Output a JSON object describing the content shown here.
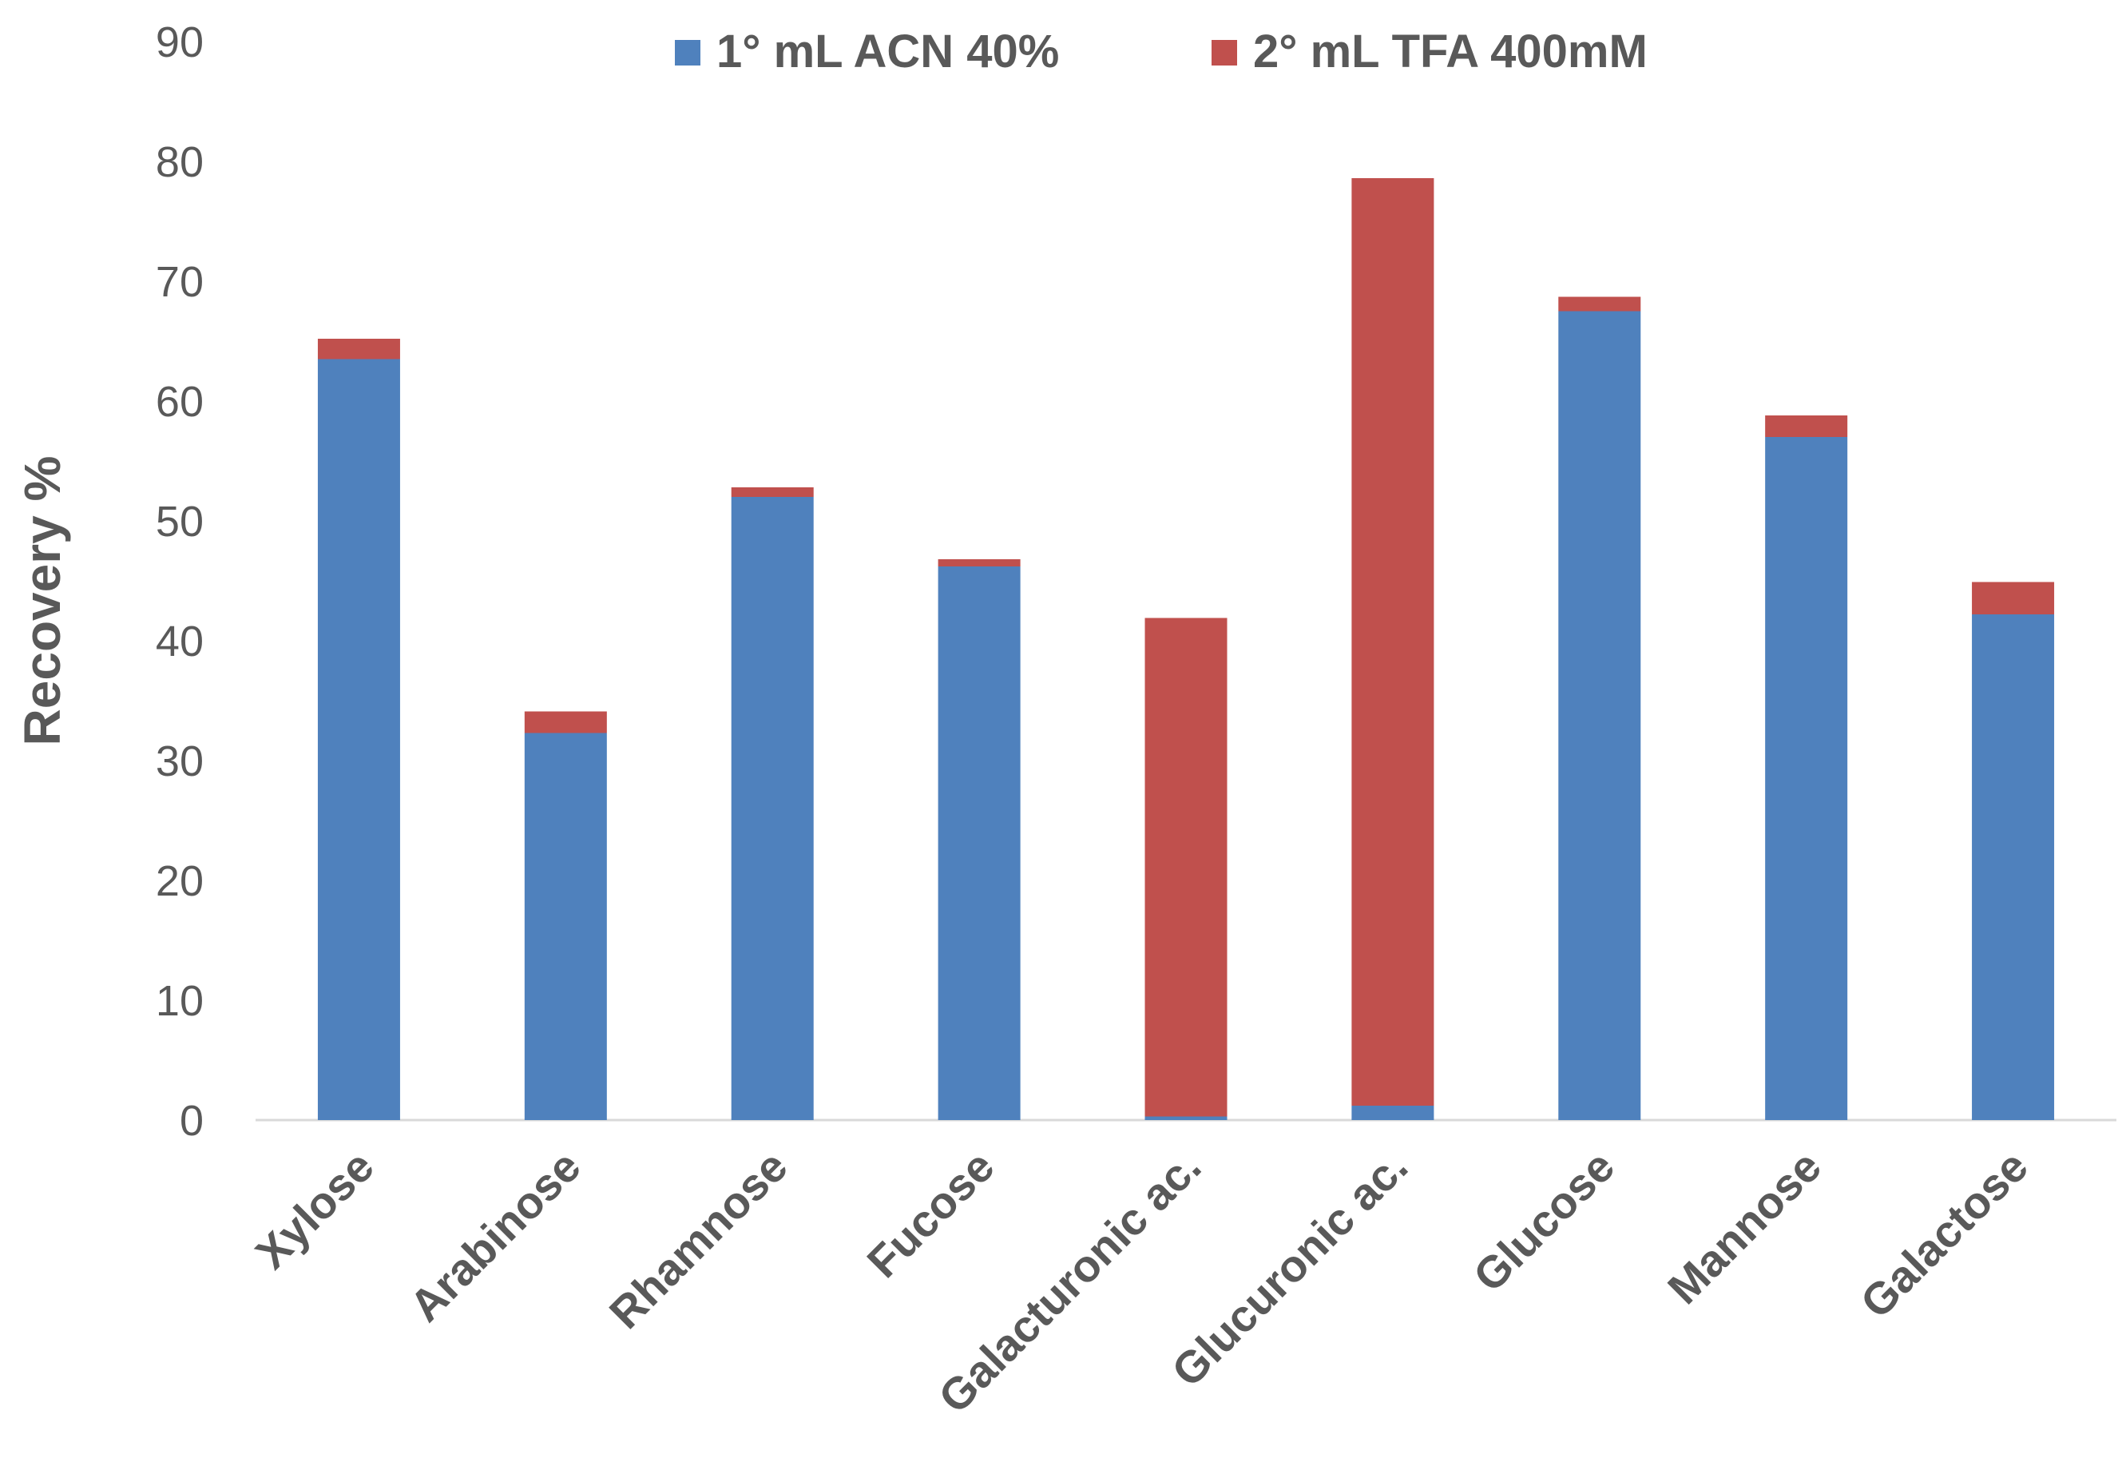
{
  "chart_data": {
    "type": "bar",
    "stacked": true,
    "title": "",
    "xlabel": "",
    "ylabel": "Recovery %",
    "ylim": [
      0,
      90
    ],
    "yticks": [
      0,
      10,
      20,
      30,
      40,
      50,
      60,
      70,
      80,
      90
    ],
    "grid": false,
    "legend_position": "top-center",
    "categories": [
      "Xylose",
      "Arabinose",
      "Rhamnose",
      "Fucose",
      "Galacturonic ac.",
      "Glucuronic ac.",
      "Glucose",
      "Mannose",
      "Galactose"
    ],
    "series": [
      {
        "name": "1° mL ACN 40%",
        "color": "#4F81BD",
        "values": [
          63.5,
          32.3,
          52.0,
          46.2,
          0.3,
          1.2,
          67.5,
          57.0,
          42.2
        ]
      },
      {
        "name": "2° mL TFA 400mM",
        "color": "#C0504D",
        "values": [
          1.7,
          1.8,
          0.8,
          0.6,
          41.6,
          77.4,
          1.2,
          1.8,
          2.7
        ]
      }
    ]
  }
}
